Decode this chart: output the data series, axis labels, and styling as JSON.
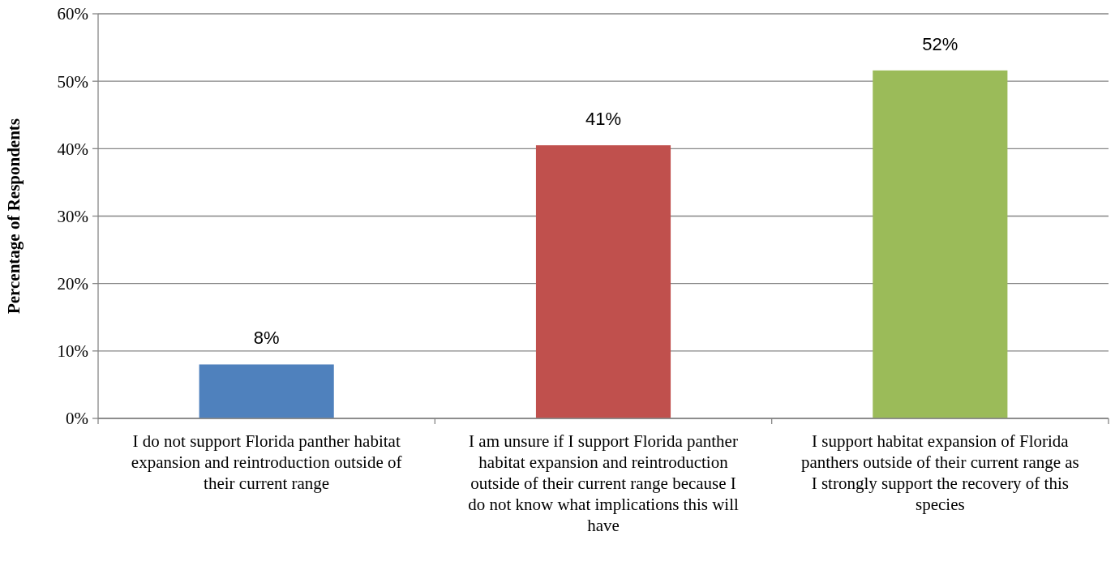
{
  "chart_data": {
    "type": "bar",
    "ylabel": "Percentage of Respondents",
    "categories": [
      "I do not support Florida panther habitat expansion and reintroduction outside of their current range",
      "I am unsure if I support Florida panther habitat expansion and reintroduction outside of their current range because I do not know what implications this will have",
      "I support habitat expansion of Florida panthers outside of their current range as I strongly support the recovery of this species"
    ],
    "values": [
      8,
      40.5,
      51.6
    ],
    "colors": [
      "#4f81bd",
      "#c0504d",
      "#9bbb59"
    ],
    "value_labels": [
      "8%",
      "41%",
      "52%"
    ],
    "ylim": [
      0,
      60
    ],
    "yticks": [
      {
        "value": 0,
        "label": "0%"
      },
      {
        "value": 10,
        "label": "10%"
      },
      {
        "value": 20,
        "label": "20%"
      },
      {
        "value": 30,
        "label": "30%"
      },
      {
        "value": 40,
        "label": "40%"
      },
      {
        "value": 50,
        "label": "50%"
      },
      {
        "value": 60,
        "label": "60%"
      }
    ],
    "grid": "y"
  }
}
